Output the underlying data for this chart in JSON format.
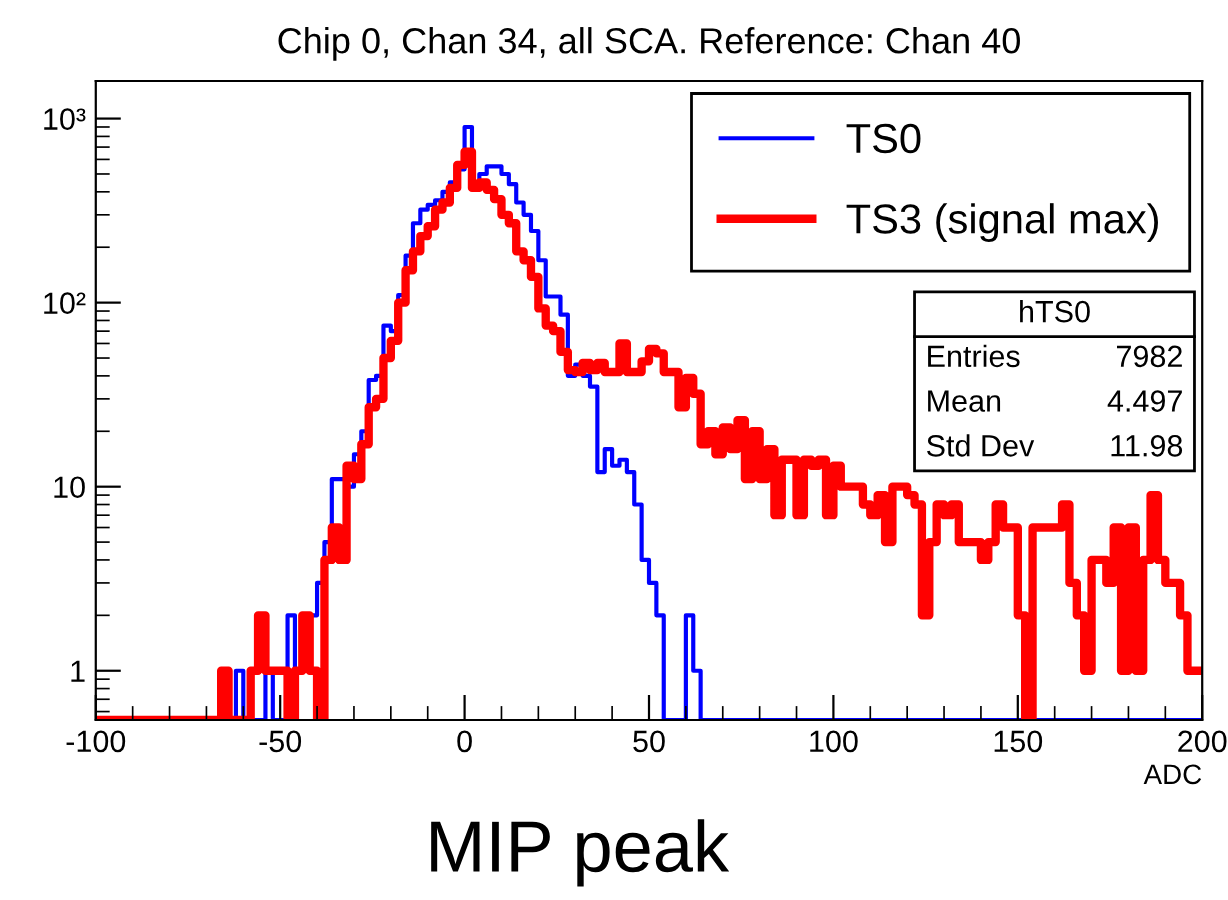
{
  "chart_data": {
    "type": "histogram",
    "title": "Chip 0, Chan 34, all SCA. Reference: Chan 40",
    "xlabel": "ADC",
    "bins": [
      -100,
      -98,
      -96,
      -94,
      -92,
      -90,
      -88,
      -86,
      -84,
      -82,
      -80,
      -78,
      -76,
      -74,
      -72,
      -70,
      -68,
      -66,
      -64,
      -62,
      -60,
      -58,
      -56,
      -54,
      -52,
      -50,
      -48,
      -46,
      -44,
      -42,
      -40,
      -38,
      -36,
      -34,
      -32,
      -30,
      -28,
      -26,
      -24,
      -22,
      -20,
      -18,
      -16,
      -14,
      -12,
      -10,
      -8,
      -6,
      -4,
      -2,
      0,
      2,
      4,
      6,
      8,
      10,
      12,
      14,
      16,
      18,
      20,
      22,
      24,
      26,
      28,
      30,
      32,
      34,
      36,
      38,
      40,
      42,
      44,
      46,
      48,
      50,
      52,
      54,
      56,
      58,
      60,
      62,
      64,
      66,
      68,
      70,
      72,
      74,
      76,
      78,
      80,
      82,
      84,
      86,
      88,
      90,
      92,
      94,
      96,
      98,
      100,
      102,
      104,
      106,
      108,
      110,
      112,
      114,
      116,
      118,
      120,
      122,
      124,
      126,
      128,
      130,
      132,
      134,
      136,
      138,
      140,
      142,
      144,
      146,
      148,
      150,
      152,
      154,
      156,
      158,
      160,
      162,
      164,
      166,
      168,
      170,
      172,
      174,
      176,
      178,
      180,
      182,
      184,
      186,
      188,
      190,
      192,
      194,
      196,
      198,
      200
    ],
    "series": [
      {
        "name": "TS0",
        "color": "#0000ff",
        "values": [
          null,
          null,
          null,
          null,
          null,
          null,
          null,
          null,
          null,
          null,
          null,
          null,
          null,
          null,
          null,
          null,
          null,
          null,
          null,
          1,
          null,
          null,
          null,
          1,
          null,
          null,
          2,
          1,
          2,
          2,
          3,
          5,
          11,
          11,
          10,
          15,
          20,
          38,
          40,
          75,
          70,
          110,
          180,
          270,
          320,
          340,
          360,
          400,
          450,
          530,
          900,
          420,
          500,
          550,
          550,
          500,
          440,
          350,
          300,
          245,
          170,
          108,
          108,
          86,
          40,
          46,
          40,
          35,
          12,
          16,
          13,
          14,
          12,
          8,
          4,
          3,
          2,
          null,
          null,
          null,
          2,
          1,
          null,
          null,
          null,
          null,
          null,
          null,
          null,
          null,
          null,
          null,
          null,
          null,
          null,
          null,
          null,
          null,
          null,
          null,
          null,
          null,
          null,
          null,
          null,
          null,
          null,
          null,
          null,
          null,
          null,
          null,
          null,
          null,
          null,
          null,
          null,
          null,
          null,
          null,
          null,
          null,
          null,
          null,
          null,
          null,
          null,
          null,
          null,
          null,
          null,
          null,
          null,
          null,
          null,
          null,
          null,
          null,
          null,
          null,
          null,
          null,
          null,
          null,
          null,
          null,
          null,
          null,
          null,
          null
        ]
      },
      {
        "name": "TS3 (signal max)",
        "color": "#ff0000",
        "values": [
          null,
          null,
          null,
          null,
          null,
          null,
          null,
          null,
          null,
          null,
          null,
          null,
          null,
          null,
          null,
          null,
          null,
          1,
          null,
          null,
          null,
          1,
          2,
          1,
          1,
          1,
          null,
          1,
          2,
          1,
          null,
          4,
          6,
          4,
          13,
          11,
          17,
          27,
          30,
          50,
          62,
          100,
          150,
          190,
          230,
          260,
          320,
          350,
          420,
          560,
          660,
          420,
          450,
          410,
          365,
          300,
          270,
          190,
          170,
          138,
          93,
          75,
          70,
          54,
          43,
          42,
          47,
          43,
          47,
          42,
          42,
          60,
          42,
          42,
          48,
          56,
          53,
          42,
          42,
          27,
          39,
          32,
          17,
          20,
          15,
          21,
          16,
          23,
          11,
          20,
          11,
          16,
          7,
          14,
          14,
          7,
          14,
          13,
          14,
          7,
          13,
          10,
          10,
          10,
          8,
          7,
          9,
          5,
          10,
          10,
          9,
          8,
          2,
          5,
          8,
          7,
          8,
          5,
          5,
          5,
          4,
          5,
          8,
          6,
          6,
          2,
          null,
          6,
          6,
          6,
          6,
          8,
          3,
          2,
          1,
          4,
          4,
          3,
          6,
          1,
          6,
          1,
          4,
          9,
          4,
          3,
          3,
          2,
          1,
          1
        ]
      }
    ],
    "log": "y",
    "xlim": [
      -100,
      200
    ],
    "xticks": [
      -100,
      -50,
      0,
      50,
      100,
      150,
      200
    ],
    "ylim": [
      0.54,
      1600
    ],
    "yticks": [
      1,
      10,
      {
        "value": 100,
        "label": "10²"
      },
      {
        "value": 1000,
        "label": "10³"
      }
    ],
    "legend": "top right",
    "annotations": [
      "hTS0",
      "Entries",
      "7982",
      "Mean",
      "4.497",
      "Std Dev",
      "11.98",
      "MIP peak"
    ]
  }
}
